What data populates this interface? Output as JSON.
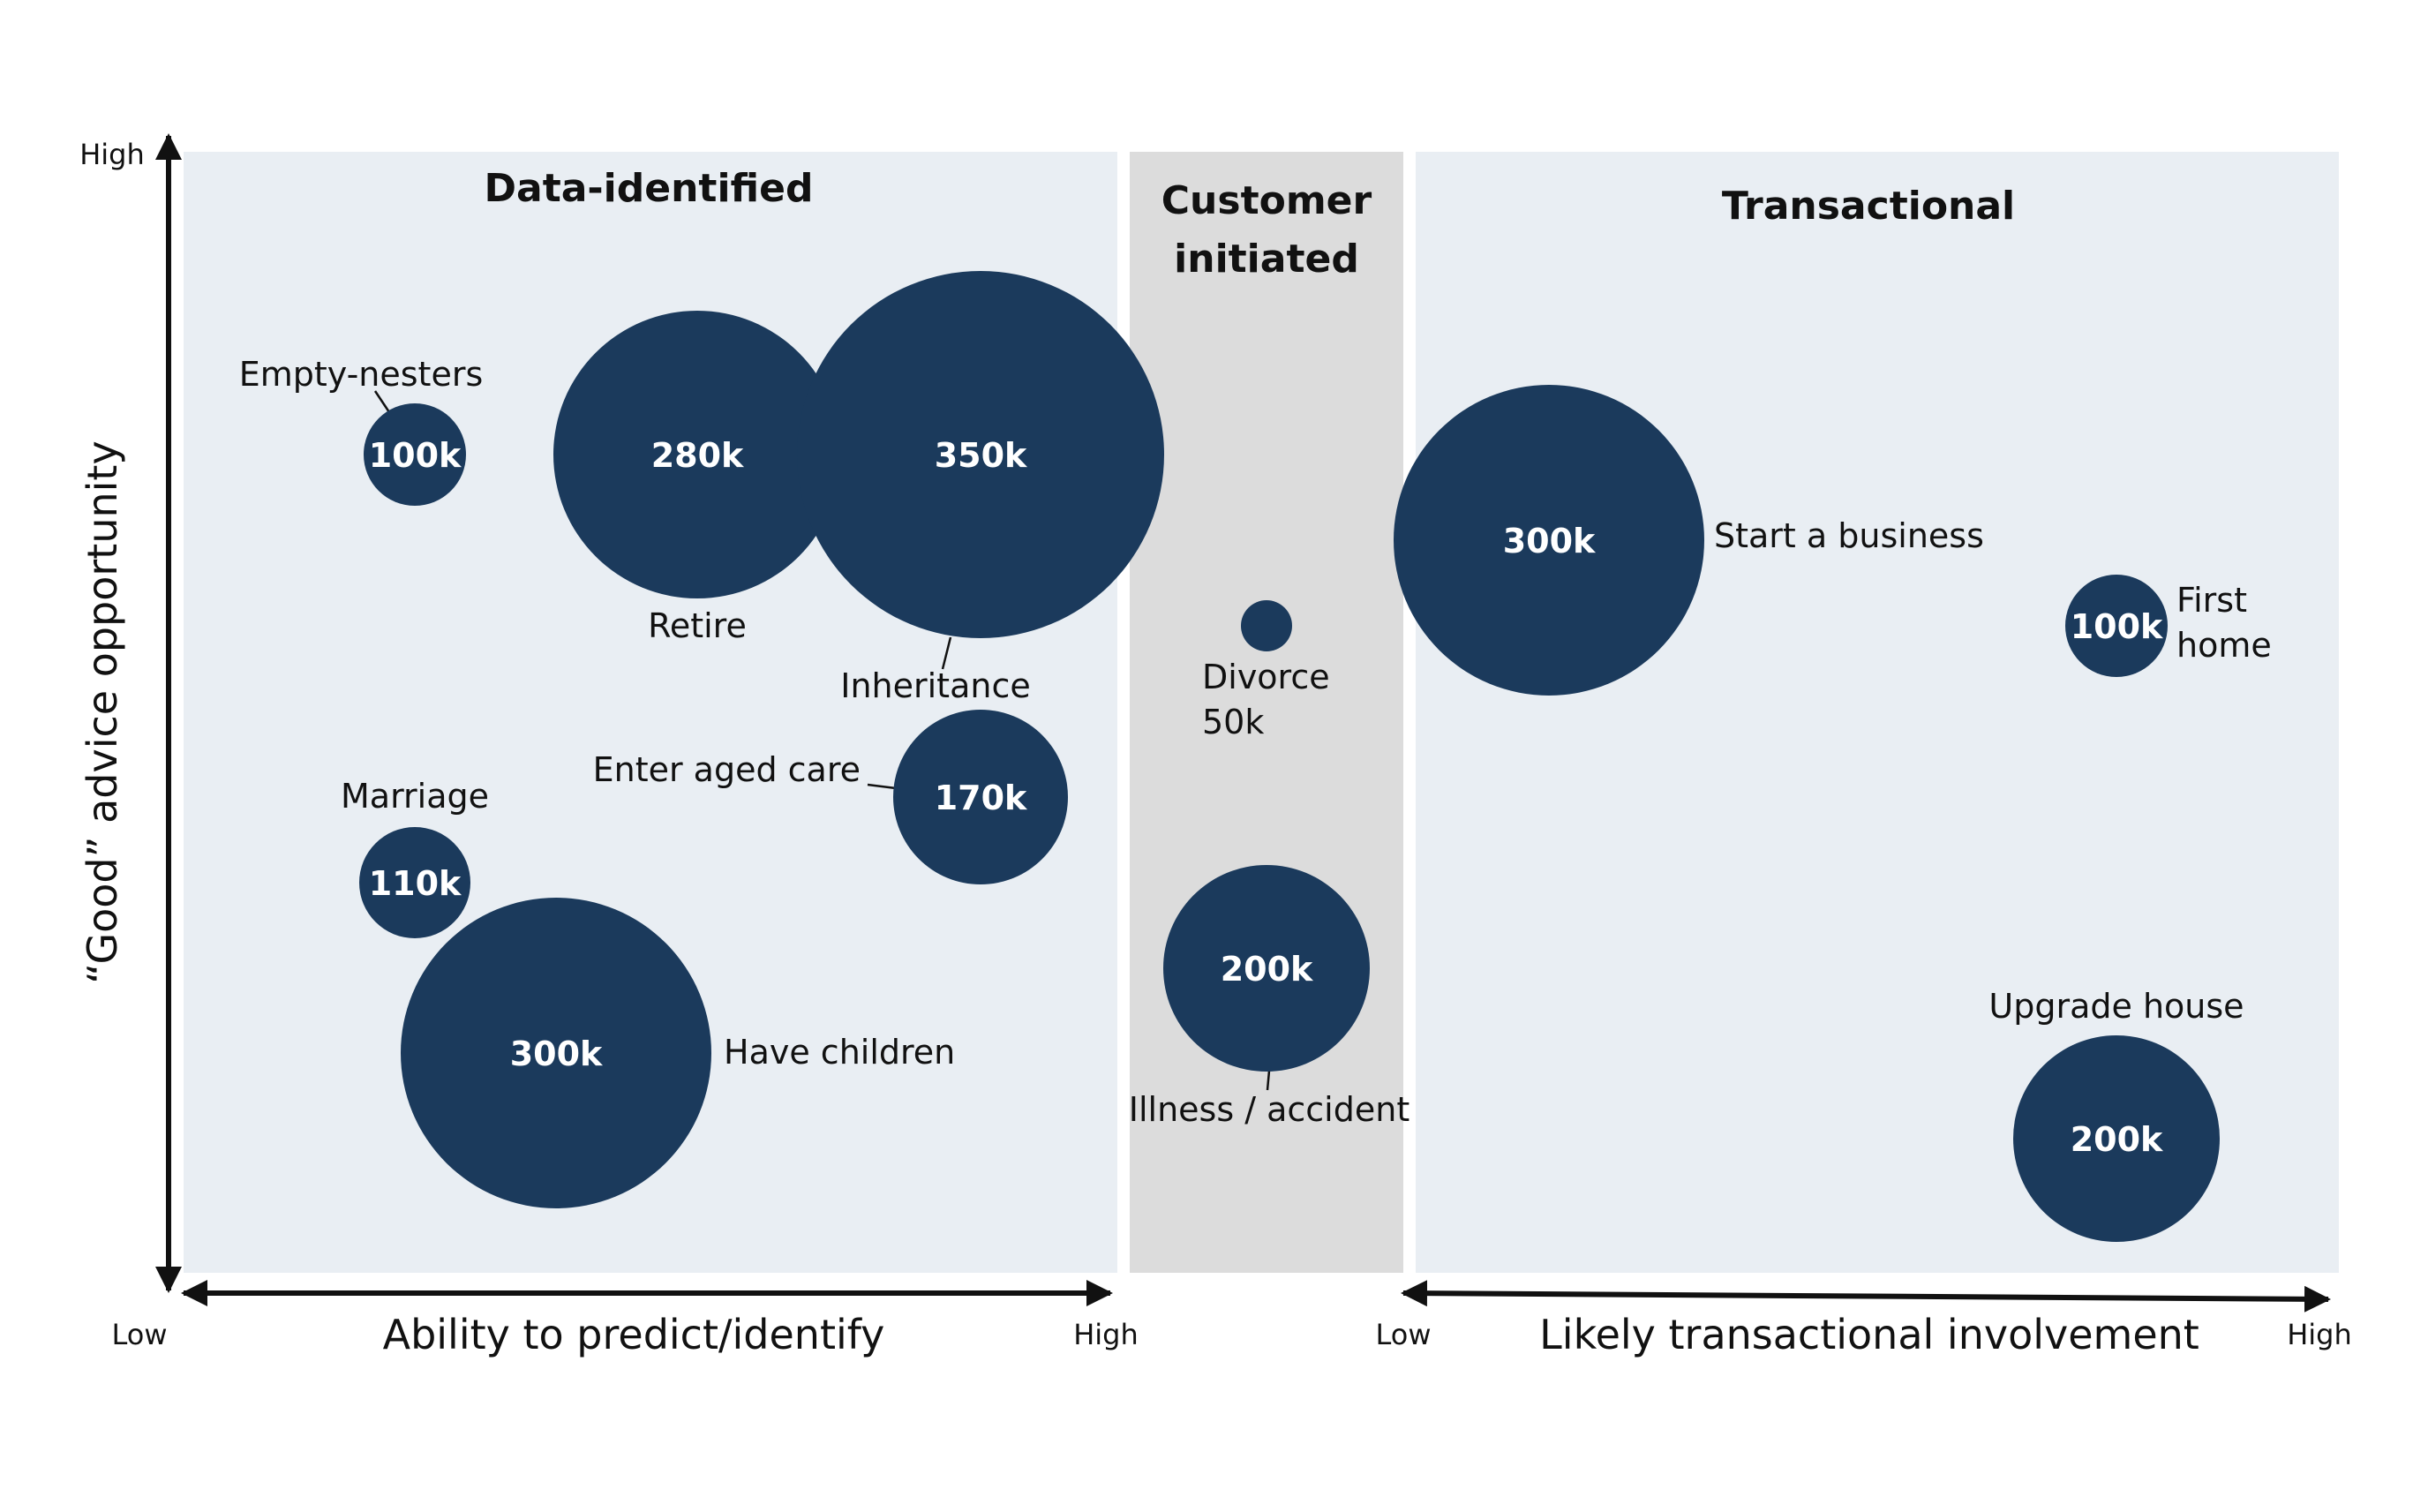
{
  "panels": {
    "data_identified": {
      "title": "Data-identified",
      "fill": "#e9eef3"
    },
    "customer_initiated": {
      "title_line1": "Customer",
      "title_line2": "initiated",
      "fill": "#dcdcdc"
    },
    "transactional": {
      "title": "Transactional",
      "fill": "#e9eef3"
    }
  },
  "axes": {
    "y_title": "“Good” advice opportunity",
    "y_high": "High",
    "y_low": "Low",
    "x_left_title": "Ability to predict/identify",
    "x_left_high": "High",
    "x_right_low": "Low",
    "x_right_title": "Likely transactional involvement",
    "x_right_high": "High"
  },
  "colors": {
    "bubble": "#1b3a5c",
    "bubble_text": "#ffffff",
    "axis": "#111111"
  },
  "bubbles": {
    "empty_nesters": {
      "value": "100k",
      "label": "Empty-nesters"
    },
    "retire": {
      "value": "280k",
      "label": "Retire"
    },
    "inheritance": {
      "value": "350k",
      "label": "Inheritance"
    },
    "enter_aged_care": {
      "value": "170k",
      "label": "Enter aged care"
    },
    "marriage": {
      "value": "110k",
      "label": "Marriage"
    },
    "have_children": {
      "value": "300k",
      "label": "Have children"
    },
    "divorce": {
      "value_line": "50k",
      "label": "Divorce"
    },
    "illness": {
      "value": "200k",
      "label": "Illness / accident"
    },
    "start_business": {
      "value": "300k",
      "label": "Start a business"
    },
    "first_home": {
      "value": "100k",
      "label_line1": "First",
      "label_line2": "home"
    },
    "upgrade_house": {
      "value": "200k",
      "label": "Upgrade house"
    }
  }
}
